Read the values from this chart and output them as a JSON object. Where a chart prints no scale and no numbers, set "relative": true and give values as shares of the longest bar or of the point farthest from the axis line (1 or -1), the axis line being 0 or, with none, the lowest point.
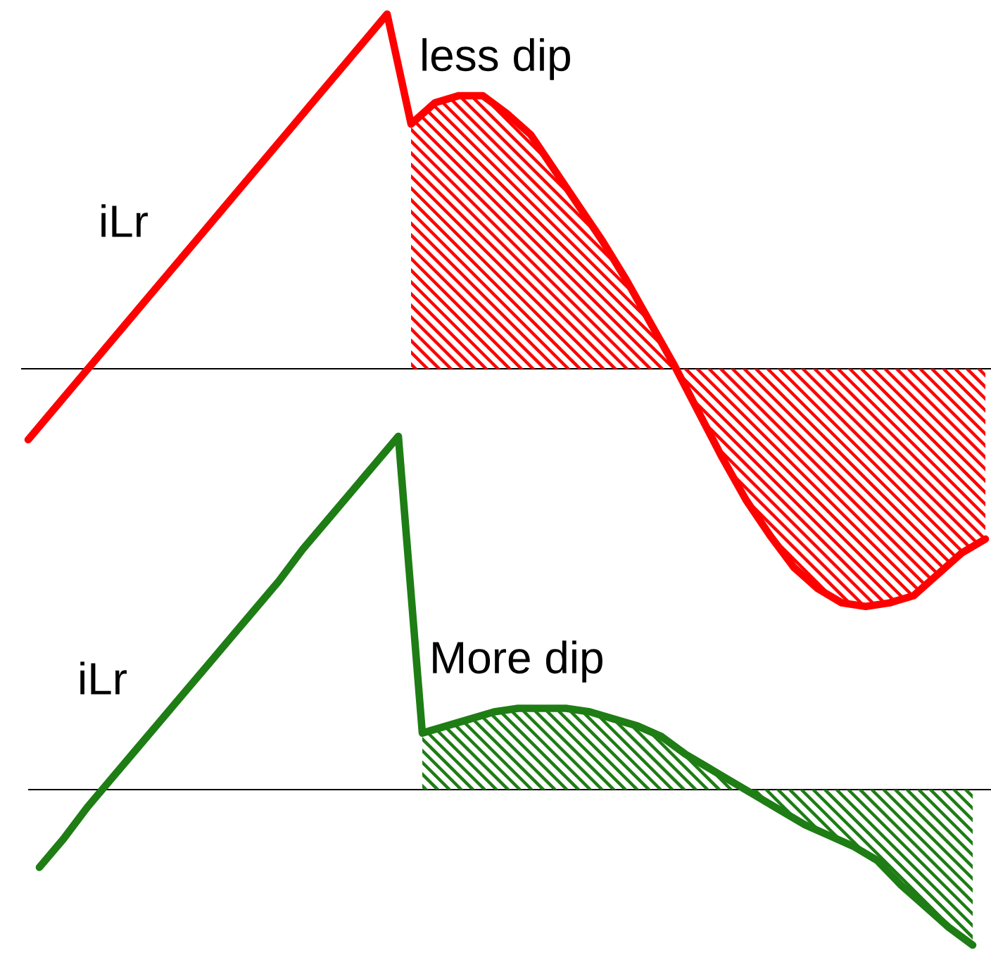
{
  "chart_data": [
    {
      "type": "line",
      "relative": true,
      "categories": [
        null,
        null,
        null,
        null,
        null,
        null,
        null,
        null,
        null,
        null,
        null,
        null,
        null,
        null,
        null,
        null,
        null,
        null,
        null,
        null,
        null,
        null,
        null,
        null,
        null,
        null,
        null,
        null,
        null,
        null,
        null,
        null,
        null,
        null,
        null,
        null,
        null,
        null,
        null,
        null,
        null
      ],
      "series": [
        {
          "color": "#ff0000",
          "values": [
            -0.2,
            -0.12,
            -0.04,
            0.04,
            0.12,
            0.2,
            0.28,
            0.36,
            0.44,
            0.52,
            0.6,
            0.68,
            0.76,
            0.84,
            0.92,
            1.0,
            0.69,
            0.75,
            0.77,
            0.77,
            0.72,
            0.66,
            0.56,
            0.46,
            0.36,
            0.25,
            0.13,
            0.01,
            -0.12,
            -0.25,
            -0.37,
            -0.47,
            -0.56,
            -0.62,
            -0.66,
            -0.67,
            -0.66,
            -0.64,
            -0.58,
            -0.52,
            -0.48
          ]
        },
        {
          "type": "area",
          "color": "#ff0000",
          "values": [
            null,
            null,
            null,
            null,
            null,
            null,
            null,
            null,
            null,
            null,
            null,
            null,
            null,
            null,
            null,
            null,
            0.69,
            0.75,
            0.77,
            0.77,
            0.72,
            0.66,
            0.56,
            0.46,
            0.36,
            0.25,
            0.13,
            0.01,
            -0.12,
            -0.25,
            -0.37,
            -0.47,
            -0.56,
            -0.62,
            -0.66,
            -0.67,
            -0.66,
            -0.64,
            -0.58,
            -0.52,
            -0.48
          ]
        }
      ],
      "annotations": [
        "iLr",
        "less dip"
      ]
    },
    {
      "type": "line",
      "relative": true,
      "categories": [
        null,
        null,
        null,
        null,
        null,
        null,
        null,
        null,
        null,
        null,
        null,
        null,
        null,
        null,
        null,
        null,
        null,
        null,
        null,
        null,
        null,
        null,
        null,
        null,
        null,
        null,
        null,
        null,
        null,
        null,
        null,
        null,
        null,
        null,
        null,
        null,
        null,
        null,
        null,
        null
      ],
      "series": [
        {
          "color": "#1e7d14",
          "values": [
            -0.22,
            -0.14,
            -0.05,
            0.03,
            0.11,
            0.19,
            0.27,
            0.35,
            0.43,
            0.51,
            0.59,
            0.68,
            0.76,
            0.84,
            0.92,
            1.0,
            0.16,
            0.18,
            0.2,
            0.22,
            0.23,
            0.23,
            0.23,
            0.22,
            0.2,
            0.18,
            0.15,
            0.1,
            0.06,
            0.02,
            -0.02,
            -0.06,
            -0.1,
            -0.13,
            -0.16,
            -0.2,
            -0.27,
            -0.33,
            -0.39,
            -0.44
          ]
        },
        {
          "type": "area",
          "color": "#1e7d14",
          "values": [
            null,
            null,
            null,
            null,
            null,
            null,
            null,
            null,
            null,
            null,
            null,
            null,
            null,
            null,
            null,
            null,
            0.16,
            0.18,
            0.2,
            0.22,
            0.23,
            0.23,
            0.23,
            0.22,
            0.2,
            0.18,
            0.15,
            0.1,
            0.06,
            0.02,
            -0.02,
            -0.06,
            -0.1,
            -0.13,
            -0.16,
            -0.2,
            -0.27,
            -0.33,
            -0.39,
            -0.44
          ]
        }
      ],
      "annotations": [
        "iLr",
        "More dip"
      ]
    }
  ]
}
